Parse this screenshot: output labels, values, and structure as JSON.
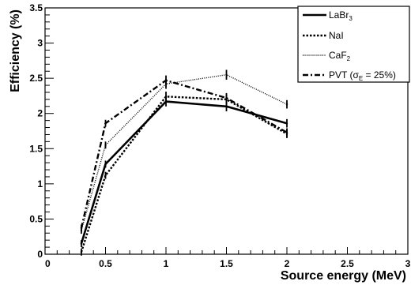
{
  "chart_data": {
    "type": "line",
    "title": "",
    "xlabel": "Source energy (MeV)",
    "ylabel": "Efficiency (%)",
    "xlim": [
      0,
      3
    ],
    "ylim": [
      0,
      3.5
    ],
    "x_ticks": [
      "0",
      "0.5",
      "1",
      "1.5",
      "2",
      "2.5",
      "3"
    ],
    "y_ticks": [
      "0",
      "0.5",
      "1",
      "1.5",
      "2",
      "2.5",
      "3",
      "3.5"
    ],
    "grid": false,
    "legend_position": "top-right",
    "series": [
      {
        "name_main": "LaBr",
        "name_sub": "3",
        "name_tail": "",
        "style": "solid",
        "x": [
          0.3,
          0.5,
          1.0,
          1.5,
          2.0
        ],
        "y": [
          0.15,
          1.28,
          2.17,
          2.1,
          1.86
        ],
        "err": [
          0.05,
          0.05,
          0.07,
          0.07,
          0.06
        ]
      },
      {
        "name_main": "NaI",
        "name_sub": "",
        "name_tail": "",
        "style": "dotted",
        "x": [
          0.3,
          0.5,
          1.0,
          1.5,
          2.0
        ],
        "y": [
          0.03,
          1.12,
          2.24,
          2.2,
          1.71
        ],
        "err": [
          0.05,
          0.05,
          0.07,
          0.07,
          0.06
        ]
      },
      {
        "name_main": "CaF",
        "name_sub": "2",
        "name_tail": "",
        "style": "fine-dotted",
        "x": [
          0.3,
          0.5,
          1.0,
          1.5,
          2.0
        ],
        "y": [
          0.34,
          1.55,
          2.42,
          2.55,
          2.13
        ],
        "err": [
          0.05,
          0.05,
          0.07,
          0.07,
          0.06
        ]
      },
      {
        "name_main": "PVT (σ",
        "name_sub": "E",
        "name_tail": " = 25%)",
        "style": "dash-dot",
        "x": [
          0.3,
          0.5,
          1.0,
          1.5,
          2.0
        ],
        "y": [
          0.37,
          1.86,
          2.47,
          2.22,
          1.73
        ],
        "err": [
          0.05,
          0.05,
          0.07,
          0.07,
          0.06
        ]
      }
    ]
  }
}
